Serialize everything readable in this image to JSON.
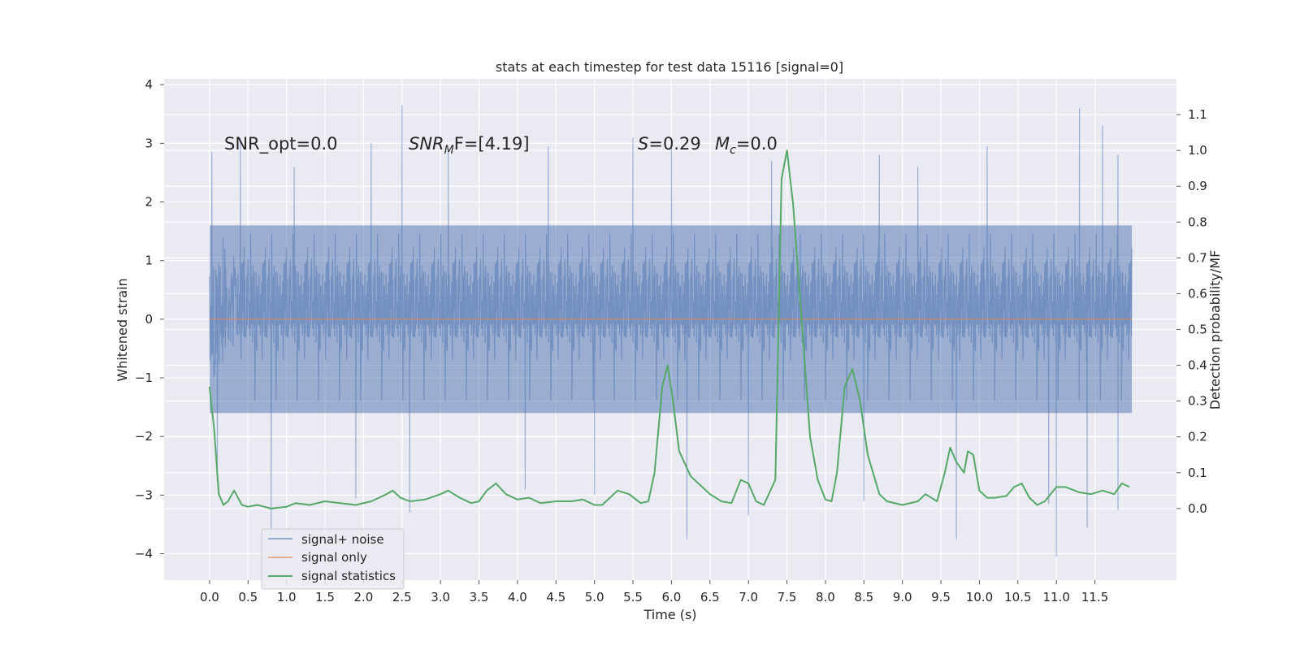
{
  "chart_data": {
    "type": "line",
    "title": "stats at each timestep for test data 15116 [signal=0]",
    "xlabel": "Time (s)",
    "ylabel": "Whitened strain",
    "ylabel_right": "Detection probability/MF",
    "xlim": [
      -0.59,
      12.56
    ],
    "ylim": [
      -4.45,
      4.1
    ],
    "ylim_right": [
      -0.2,
      1.2
    ],
    "x_ticks": [
      "0.0",
      "0.5",
      "1.0",
      "1.5",
      "2.0",
      "2.5",
      "3.0",
      "3.5",
      "4.0",
      "4.5",
      "5.0",
      "5.5",
      "6.0",
      "6.5",
      "7.0",
      "7.5",
      "8.0",
      "8.5",
      "9.0",
      "9.5",
      "10.0",
      "10.5",
      "11.0",
      "11.5"
    ],
    "y_ticks": [
      "4",
      "3",
      "2",
      "1",
      "0",
      "−1",
      "−2",
      "−3",
      "−4"
    ],
    "y_ticks_right": [
      "1.1",
      "1.0",
      "0.9",
      "0.8",
      "0.7",
      "0.6",
      "0.5",
      "0.4",
      "0.3",
      "0.2",
      "0.1",
      "0.0"
    ],
    "grid": true,
    "legend_position": "lower-left",
    "annotations": {
      "snr_opt": "SNR_opt=0.0",
      "snr_mf_main": "SNR",
      "snr_mf_sub": "M",
      "snr_mf_tail": "F=[4.19]",
      "s_var": "S",
      "s_value": "=0.29",
      "mc_var": "M",
      "mc_sub": "c",
      "mc_value": "=0.0"
    },
    "series": [
      {
        "name": "signal+ noise",
        "color": "#4c72b0",
        "axis": "left",
        "kind": "noise",
        "t_start": 0.0,
        "t_end": 11.98,
        "band": [
          -1.6,
          1.6
        ],
        "peaks_high": [
          [
            0.03,
            2.85
          ],
          [
            0.4,
            3.1
          ],
          [
            1.1,
            2.6
          ],
          [
            2.1,
            3.0
          ],
          [
            2.5,
            3.65
          ],
          [
            3.1,
            2.9
          ],
          [
            4.4,
            2.95
          ],
          [
            5.5,
            3.1
          ],
          [
            6.0,
            3.0
          ],
          [
            7.3,
            2.7
          ],
          [
            8.7,
            2.8
          ],
          [
            9.2,
            2.6
          ],
          [
            10.1,
            2.95
          ],
          [
            11.3,
            3.6
          ],
          [
            11.6,
            3.3
          ],
          [
            11.8,
            2.8
          ]
        ],
        "peaks_low": [
          [
            0.1,
            -2.75
          ],
          [
            0.8,
            -3.6
          ],
          [
            1.9,
            -3.05
          ],
          [
            2.6,
            -3.3
          ],
          [
            4.1,
            -2.9
          ],
          [
            5.0,
            -3.0
          ],
          [
            6.2,
            -3.75
          ],
          [
            7.0,
            -3.35
          ],
          [
            8.5,
            -3.1
          ],
          [
            9.7,
            -3.75
          ],
          [
            10.9,
            -3.15
          ],
          [
            11.0,
            -4.05
          ],
          [
            11.4,
            -3.55
          ],
          [
            11.8,
            -3.25
          ]
        ]
      },
      {
        "name": "signal only",
        "color": "#dd8452",
        "axis": "left",
        "x": [
          0.0,
          11.98
        ],
        "y": [
          0.0,
          0.0
        ]
      },
      {
        "name": "signal statistics",
        "color": "#55a868",
        "axis": "right",
        "x": [
          0.0,
          0.06,
          0.12,
          0.18,
          0.24,
          0.32,
          0.42,
          0.5,
          0.62,
          0.8,
          1.0,
          1.12,
          1.3,
          1.5,
          1.7,
          1.9,
          2.1,
          2.2,
          2.3,
          2.38,
          2.48,
          2.6,
          2.8,
          3.0,
          3.1,
          3.25,
          3.4,
          3.5,
          3.6,
          3.72,
          3.85,
          4.0,
          4.15,
          4.3,
          4.5,
          4.7,
          4.85,
          5.0,
          5.1,
          5.3,
          5.45,
          5.6,
          5.7,
          5.78,
          5.88,
          5.95,
          6.02,
          6.1,
          6.25,
          6.5,
          6.65,
          6.78,
          6.9,
          7.0,
          7.1,
          7.2,
          7.35,
          7.43,
          7.5,
          7.58,
          7.7,
          7.8,
          7.9,
          8.0,
          8.08,
          8.15,
          8.25,
          8.35,
          8.45,
          8.55,
          8.7,
          8.8,
          9.0,
          9.2,
          9.3,
          9.45,
          9.55,
          9.62,
          9.7,
          9.8,
          9.85,
          9.92,
          10.0,
          10.1,
          10.2,
          10.35,
          10.45,
          10.55,
          10.65,
          10.75,
          10.85,
          11.0,
          11.12,
          11.3,
          11.45,
          11.6,
          11.75,
          11.85,
          11.95
        ],
        "y": [
          0.34,
          0.22,
          0.04,
          0.01,
          0.02,
          0.05,
          0.01,
          0.005,
          0.01,
          0.0,
          0.005,
          0.015,
          0.01,
          0.02,
          0.015,
          0.01,
          0.02,
          0.03,
          0.04,
          0.05,
          0.03,
          0.02,
          0.025,
          0.04,
          0.05,
          0.03,
          0.015,
          0.02,
          0.05,
          0.07,
          0.04,
          0.025,
          0.03,
          0.015,
          0.02,
          0.02,
          0.025,
          0.01,
          0.01,
          0.05,
          0.04,
          0.015,
          0.02,
          0.1,
          0.34,
          0.4,
          0.3,
          0.16,
          0.09,
          0.04,
          0.02,
          0.015,
          0.08,
          0.07,
          0.02,
          0.01,
          0.08,
          0.92,
          1.0,
          0.85,
          0.5,
          0.2,
          0.08,
          0.025,
          0.02,
          0.1,
          0.34,
          0.39,
          0.3,
          0.15,
          0.04,
          0.02,
          0.01,
          0.02,
          0.04,
          0.02,
          0.1,
          0.17,
          0.13,
          0.1,
          0.16,
          0.15,
          0.05,
          0.03,
          0.03,
          0.035,
          0.06,
          0.07,
          0.03,
          0.01,
          0.02,
          0.06,
          0.06,
          0.045,
          0.04,
          0.05,
          0.04,
          0.07,
          0.06
        ]
      }
    ]
  }
}
